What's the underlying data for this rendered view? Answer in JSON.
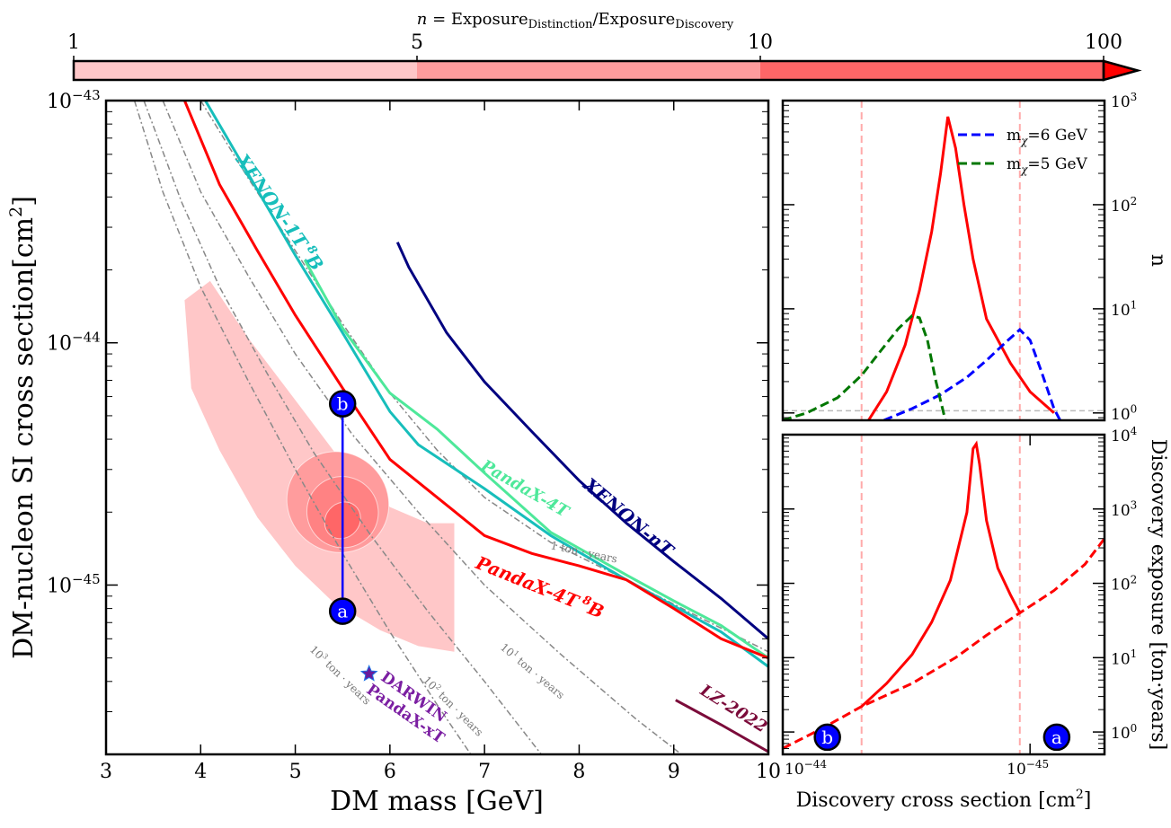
{
  "colorbar": {
    "title_n": "n",
    "title_eq": "= Exposure",
    "title_sub1": "Distinction",
    "title_slash": "/Exposure",
    "title_sub2": "Discovery",
    "ticks": [
      {
        "label": "1",
        "value": 1
      },
      {
        "label": "5",
        "value": 5
      },
      {
        "label": "10",
        "value": 10
      },
      {
        "label": "100",
        "value": 100
      }
    ],
    "colors": [
      "#ffc7c8",
      "#ff9c9d",
      "#ff6667",
      "#ff0000"
    ]
  },
  "chart_data": [
    {
      "id": "main",
      "type": "line",
      "xlabel": "DM mass [GeV]",
      "ylabel": "DM-nucleon SI cross section[cm",
      "ylabel_sup": "2",
      "ylabel_end": "]",
      "xlim": [
        3,
        10
      ],
      "ylim": [
        2e-46,
        1e-43
      ],
      "yscale": "log",
      "xticks": [
        3,
        4,
        5,
        6,
        7,
        8,
        9,
        10
      ],
      "yticks": [
        {
          "base": "10",
          "exp": "−43",
          "value": 1e-43
        },
        {
          "base": "10",
          "exp": "−44",
          "value": 1e-44
        },
        {
          "base": "10",
          "exp": "−45",
          "value": 1e-45
        }
      ],
      "series": [
        {
          "name": "XENON-1T",
          "name_sup": "8",
          "name_end": "B",
          "color": "#17bebb",
          "x": [
            4.05,
            4.5,
            5.0,
            5.5,
            6.0,
            6.3,
            7.0,
            7.7,
            8.5,
            9.0,
            9.5,
            10.0
          ],
          "y": [
            1e-43,
            5e-44,
            2.3e-44,
            1.1e-44,
            5.2e-45,
            3.8e-45,
            2.5e-45,
            1.6e-45,
            1.05e-45,
            8.2e-46,
            6.4e-46,
            4.6e-46
          ]
        },
        {
          "name": "PandaX-4T",
          "color": "#4ee89a",
          "x": [
            5.1,
            5.5,
            6.0,
            6.5,
            7.0,
            7.7,
            8.5,
            9.0,
            9.5,
            10.0
          ],
          "y": [
            2.2e-44,
            1.15e-44,
            6.2e-45,
            4.4e-45,
            2.9e-45,
            1.65e-45,
            1.1e-45,
            8.6e-46,
            6.8e-46,
            5e-46
          ]
        },
        {
          "name": "PandaX-4T",
          "name_sup": "8",
          "name_end": "B",
          "color": "#ff0000",
          "x": [
            3.83,
            4.2,
            4.6,
            5.0,
            5.5,
            6.0,
            6.5,
            7.0,
            7.5,
            8.0,
            8.5,
            9.0,
            9.5,
            10.0
          ],
          "y": [
            1e-43,
            4.5e-44,
            2.4e-44,
            1.3e-44,
            6.5e-45,
            3.3e-45,
            2.3e-45,
            1.6e-45,
            1.35e-45,
            1.2e-45,
            1.05e-45,
            8e-46,
            6e-46,
            5e-46
          ]
        },
        {
          "name": "XENON-nT",
          "color": "#000080",
          "x": [
            6.08,
            6.2,
            6.6,
            7.0,
            7.5,
            8.0,
            8.5,
            9.0,
            9.5,
            10.0
          ],
          "y": [
            2.6e-44,
            2.05e-44,
            1.1e-44,
            6.9e-45,
            4.3e-45,
            2.7e-45,
            1.8e-45,
            1.25e-45,
            8.8e-46,
            6e-46
          ]
        },
        {
          "name": "LZ-2022",
          "color": "#7b0b3a",
          "x": [
            9.02,
            9.5,
            10.0
          ],
          "y": [
            3.35e-46,
            2.65e-46,
            2.05e-46
          ]
        }
      ],
      "exposure_lines": [
        {
          "label_base": "10",
          "label_exp": "3",
          "label_rest": " ton · years",
          "x": [
            3.3,
            3.6,
            4.0,
            4.5,
            5.0,
            5.5,
            6.0,
            6.5,
            7.0
          ],
          "y": [
            1e-43,
            4.2e-44,
            1.7e-44,
            7e-45,
            3e-45,
            1.35e-45,
            6.4e-46,
            3.2e-46,
            1.65e-46
          ]
        },
        {
          "label_base": "10",
          "label_exp": "2",
          "label_rest": " ton · years",
          "x": [
            3.4,
            3.8,
            4.2,
            4.7,
            5.2,
            5.8,
            6.4,
            7.0,
            7.6
          ],
          "y": [
            1e-43,
            3.8e-44,
            1.7e-44,
            7.5e-45,
            3.5e-45,
            1.6e-45,
            7.8e-46,
            4e-46,
            2e-46
          ]
        },
        {
          "label_base": "10",
          "label_exp": "1",
          "label_rest": " ton · years",
          "x": [
            3.6,
            4.0,
            4.5,
            5.0,
            5.6,
            6.3,
            7.0,
            7.8,
            8.6,
            9.4
          ],
          "y": [
            1e-43,
            4.2e-44,
            1.9e-44,
            9e-45,
            4.2e-45,
            2e-45,
            1e-45,
            5.2e-46,
            2.8e-46,
            1.6e-46
          ]
        },
        {
          "label_base": "",
          "label_exp": "",
          "label_rest": "1 ton · years",
          "x": [
            4.0,
            4.5,
            5.0,
            5.5,
            6.0,
            6.5,
            7.0,
            7.7,
            8.5,
            9.2,
            10.0
          ],
          "y": [
            1e-43,
            4.8e-44,
            2.4e-44,
            1.2e-44,
            6.2e-45,
            3.6e-45,
            2.3e-45,
            1.5e-45,
            1.05e-45,
            7.6e-46,
            5.3e-46
          ]
        }
      ],
      "region": {
        "outer_color": "#ffc7c8",
        "outer_x": [
          3.83,
          4.1,
          4.5,
          5.0,
          5.5,
          6.0,
          6.4,
          6.68,
          6.68,
          6.3,
          5.9,
          5.4,
          5.0,
          4.6,
          4.2,
          3.9
        ],
        "outer_y": [
          1.5e-44,
          1.8e-44,
          1.05e-44,
          5.8e-45,
          3.2e-45,
          2.1e-45,
          1.8e-45,
          1.8e-45,
          5.3e-46,
          5.6e-46,
          6.5e-46,
          8.5e-46,
          1.2e-45,
          1.9e-45,
          3.6e-45,
          6.5e-45
        ],
        "contours": [
          {
            "color": "#ff9c9d",
            "cx": 5.45,
            "cy": 2.2e-45,
            "rx": 0.55,
            "ryf": 1.6
          },
          {
            "color": "#ff8283",
            "cx": 5.5,
            "cy": 2e-45,
            "rx": 0.38,
            "ryf": 1.4
          },
          {
            "color": "#ff6667",
            "cx": 5.5,
            "cy": 1.85e-45,
            "rx": 0.18,
            "ryf": 1.2
          }
        ]
      },
      "benchmarks": [
        {
          "label": "a",
          "x": 5.5,
          "y": 7.8e-46
        },
        {
          "label": "b",
          "x": 5.5,
          "y": 5.6e-45
        }
      ],
      "markers": [
        {
          "name": "DARWIN",
          "name2": "PandaX-xT",
          "x": 5.78,
          "y": 4.3e-46,
          "color": "#7b1fa2"
        }
      ]
    },
    {
      "id": "top-right",
      "type": "line",
      "ylabel": "n",
      "xlim": [
        1e-44,
        5e-46
      ],
      "xscale": "log-reversed",
      "ylim": [
        0.85,
        1000
      ],
      "yscale": "log",
      "yticks": [
        {
          "base": "10",
          "exp": "0",
          "value": 1
        },
        {
          "base": "10",
          "exp": "1",
          "value": 10
        },
        {
          "base": "10",
          "exp": "2",
          "value": 100
        },
        {
          "base": "10",
          "exp": "3",
          "value": 1000
        }
      ],
      "reference_y": 1.05,
      "vlines": [
        4.8e-45,
        1.1e-45
      ],
      "series": [
        {
          "name": "",
          "color": "#ff0000",
          "style": "solid",
          "x": [
            4.5e-45,
            3.8e-45,
            3.2e-45,
            2.8e-45,
            2.5e-45,
            2.3e-45,
            2.15e-45,
            2e-45,
            1.85e-45,
            1.7e-45,
            1.5e-45,
            1.2e-45,
            1e-45,
            8e-46
          ],
          "y": [
            0.85,
            1.6,
            4.5,
            15,
            55,
            200,
            700,
            350,
            100,
            30,
            8,
            3,
            1.6,
            1.0
          ]
        },
        {
          "name": "m",
          "name_sub": "χ",
          "name_end": "=6 GeV",
          "color": "#0000ff",
          "style": "dashed",
          "x": [
            3.9e-45,
            3e-45,
            2.3e-45,
            1.8e-45,
            1.5e-45,
            1.25e-45,
            1.1e-45,
            1e-45,
            9e-46,
            8e-46,
            7e-46
          ],
          "y": [
            0.85,
            1.1,
            1.5,
            2.2,
            3.2,
            4.8,
            6.3,
            5.0,
            2.5,
            1.1,
            0.6
          ]
        },
        {
          "name": "m",
          "name_sub": "χ",
          "name_end": "=5 GeV",
          "color": "#007700",
          "style": "dashed",
          "x": [
            1e-44,
            8e-45,
            6e-45,
            4.8e-45,
            4e-45,
            3.4e-45,
            3e-45,
            2.8e-45,
            2.6e-45,
            2.4e-45,
            2.2e-45
          ],
          "y": [
            0.85,
            1.0,
            1.4,
            2.3,
            4.0,
            6.5,
            8.6,
            8.2,
            5.0,
            2.0,
            0.85
          ]
        }
      ]
    },
    {
      "id": "bottom-right",
      "type": "line",
      "xlabel": "Discovery cross section [cm",
      "xlabel_sup": "2",
      "xlabel_end": "]",
      "ylabel": "Discovery exposure [ton·years]",
      "xlim": [
        1e-44,
        5e-46
      ],
      "xscale": "log-reversed",
      "ylim": [
        0.5,
        10000
      ],
      "yscale": "log",
      "xticks": [
        {
          "base": "10",
          "exp": "−44",
          "value": 1e-44
        },
        {
          "base": "10",
          "exp": "−45",
          "value": 1e-45
        }
      ],
      "yticks": [
        {
          "base": "10",
          "exp": "0",
          "value": 1
        },
        {
          "base": "10",
          "exp": "1",
          "value": 10
        },
        {
          "base": "10",
          "exp": "2",
          "value": 100
        },
        {
          "base": "10",
          "exp": "3",
          "value": 1000
        },
        {
          "base": "10",
          "exp": "4",
          "value": 10000
        }
      ],
      "vlines": [
        4.8e-45,
        1.1e-45
      ],
      "series": [
        {
          "name": "",
          "color": "#ff0000",
          "style": "solid",
          "x": [
            4.8e-45,
            3.8e-45,
            3e-45,
            2.5e-45,
            2.1e-45,
            1.8e-45,
            1.7e-45,
            1.65e-45,
            1.6e-45,
            1.5e-45,
            1.35e-45,
            1.2e-45,
            1.1e-45
          ],
          "y": [
            2.2,
            4.5,
            11,
            30,
            110,
            900,
            6500,
            7500,
            4000,
            700,
            160,
            70,
            40
          ]
        },
        {
          "name": "",
          "color": "#ff0000",
          "style": "dashed",
          "x": [
            1e-44,
            7e-45,
            4.8e-45,
            3e-45,
            2e-45,
            1.5e-45,
            1.1e-45,
            8e-46,
            6e-46,
            5e-46
          ],
          "y": [
            0.6,
            1.1,
            2.2,
            4.5,
            10,
            20,
            40,
            80,
            180,
            400
          ]
        }
      ],
      "benchmarks": [
        {
          "label": "b",
          "x": 6.6e-45,
          "y": 0.85
        },
        {
          "label": "a",
          "x": 7.8e-46,
          "y": 0.85
        }
      ]
    }
  ]
}
